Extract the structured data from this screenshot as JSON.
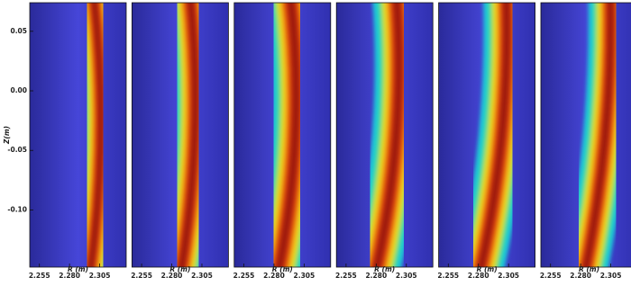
{
  "chart_data": [
    {
      "type": "heatmap",
      "xlabel": "R (m)",
      "ylabel": "Z(m)",
      "xlim": [
        2.247,
        2.327
      ],
      "xticks": [
        2.255,
        {
          "value": 2.28,
          "label": "2.280"
        },
        2.305
      ],
      "ylim": [
        -0.148,
        0.074
      ],
      "yticks": [
        0.05,
        {
          "value": 0,
          "label": "0.00"
        },
        -0.05,
        {
          "value": -0.1,
          "label": "-0.10"
        }
      ]
    },
    {
      "type": "heatmap",
      "xlabel": "R (m)",
      "xlim": [
        2.247,
        2.327
      ],
      "xticks": [
        2.255,
        {
          "value": 2.28,
          "label": "2.280"
        },
        2.305
      ],
      "ylim": [
        -0.148,
        0.074
      ]
    },
    {
      "type": "heatmap",
      "xlabel": "R (m)",
      "xlim": [
        2.247,
        2.327
      ],
      "xticks": [
        2.255,
        {
          "value": 2.28,
          "label": "2.280"
        },
        2.305
      ],
      "ylim": [
        -0.148,
        0.074
      ]
    },
    {
      "type": "heatmap",
      "xlabel": "R (m)",
      "xlim": [
        2.247,
        2.327
      ],
      "xticks": [
        2.255,
        {
          "value": 2.28,
          "label": "2.280"
        },
        2.305
      ],
      "ylim": [
        -0.148,
        0.074
      ]
    },
    {
      "type": "heatmap",
      "xlabel": "R (m)",
      "xlim": [
        2.247,
        2.327
      ],
      "xticks": [
        2.255,
        {
          "value": 2.28,
          "label": "2.280"
        },
        2.305
      ],
      "ylim": [
        -0.148,
        0.074
      ]
    },
    {
      "type": "heatmap",
      "xlabel": "R (m)",
      "xlim": [
        2.247,
        2.327
      ],
      "xticks": [
        2.255,
        {
          "value": 2.28,
          "label": "2.280"
        },
        2.305
      ],
      "ylim": [
        -0.148,
        0.074
      ]
    }
  ]
}
